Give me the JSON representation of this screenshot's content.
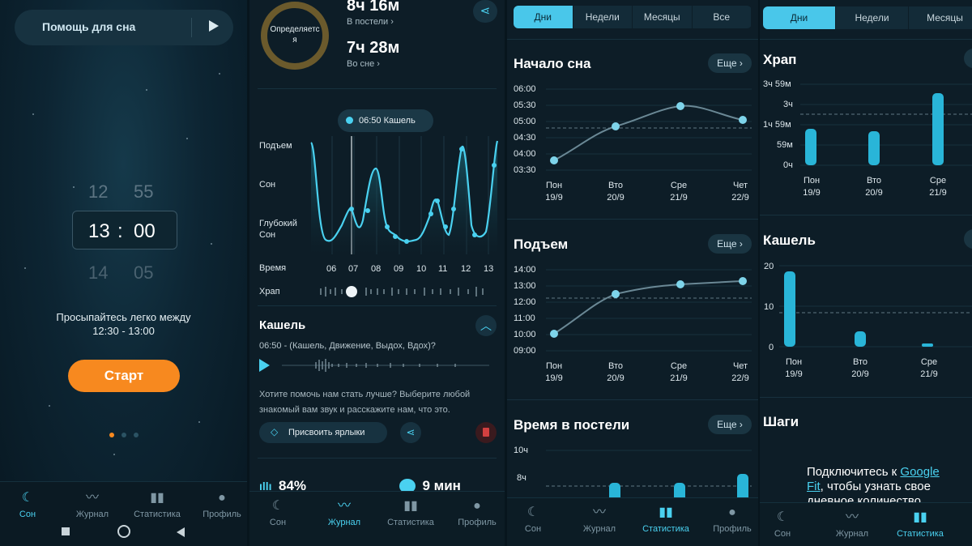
{
  "panel1": {
    "sleep_help": "Помощь для сна",
    "wheel": {
      "hours": [
        "12",
        "13",
        "14"
      ],
      "minutes": [
        "55",
        "00",
        "05"
      ],
      "sep": ":"
    },
    "wake_line1": "Просыпайтесь легко между",
    "wake_line2": "12:30 - 13:00",
    "start_label": "Старт",
    "nav": [
      "Сон",
      "Журнал",
      "Статистика",
      "Профиль"
    ]
  },
  "panel2": {
    "in_bed_value": "8ч 16м",
    "in_bed_label": "В постели ›",
    "asleep_value": "7ч 28м",
    "asleep_label": "Во сне ›",
    "ring_label": "Определяется",
    "marker_label": "06:50 Кашель",
    "y_labels": [
      "Подъем",
      "Сон",
      "Глубокий",
      "Сон"
    ],
    "time_label": "Время",
    "times": [
      "06",
      "07",
      "08",
      "09",
      "10",
      "11",
      "12",
      "13"
    ],
    "snore_label": "Храп",
    "cough_title": "Кашель",
    "cough_detail": "06:50 - (Кашель, Движение, Выдох, Вдох)?",
    "help_text_1": "Хотите помочь нам стать лучше? Выберите любой",
    "help_text_2": "знакомый вам звук и расскажите нам, что это.",
    "tag_button": "Присвоить ярлыки",
    "stat_percent": "84%",
    "stat_time": "9 мин",
    "nav": [
      "Сон",
      "Журнал",
      "Статистика",
      "Профиль"
    ]
  },
  "panel3": {
    "tabs": [
      "Дни",
      "Недели",
      "Месяцы",
      "Все"
    ],
    "more": "Еще",
    "charts": [
      {
        "title": "Начало сна",
        "ylabels": [
          "06:00",
          "05:30",
          "05:00",
          "04:30",
          "04:00",
          "03:30"
        ]
      },
      {
        "title": "Подъем",
        "ylabels": [
          "14:00",
          "13:00",
          "12:00",
          "11:00",
          "10:00",
          "09:00"
        ]
      },
      {
        "title": "Время в постели",
        "ylabels": [
          "10ч",
          "8ч"
        ]
      }
    ],
    "days": [
      "Пон",
      "Вто",
      "Сре",
      "Чет"
    ],
    "dates": [
      "19/9",
      "20/9",
      "21/9",
      "22/9"
    ],
    "nav": [
      "Сон",
      "Журнал",
      "Статистика",
      "Профиль"
    ]
  },
  "panel4": {
    "tabs": [
      "Дни",
      "Недели",
      "Месяцы"
    ],
    "snore_title": "Храп",
    "snore_y": [
      "3ч 59м",
      "3ч",
      "1ч 59м",
      "59м",
      "0ч"
    ],
    "cough_title": "Кашель",
    "cough_y": [
      "20",
      "10",
      "0"
    ],
    "steps_title": "Шаги",
    "days": [
      "Пон",
      "Вто",
      "Сре"
    ],
    "dates": [
      "19/9",
      "20/9",
      "21/9"
    ],
    "connect_1": "Подключитесь к ",
    "connect_link1": "Google",
    "connect_link2": "Fit",
    "connect_2": ", чтобы узнать свое",
    "connect_3": "дневное количество",
    "nav": [
      "Сон",
      "Журнал",
      "Статистика"
    ]
  },
  "chart_data": [
    {
      "type": "line",
      "title": "Начало сна",
      "categories": [
        "Пон 19/9",
        "Вто 20/9",
        "Сре 21/9",
        "Чет 22/9"
      ],
      "values": [
        "03:45",
        "04:52",
        "05:20",
        "05:02"
      ],
      "ylim": [
        "03:30",
        "06:00"
      ],
      "average": "04:47"
    },
    {
      "type": "line",
      "title": "Подъем",
      "categories": [
        "Пон 19/9",
        "Вто 20/9",
        "Сре 21/9",
        "Чет 22/9"
      ],
      "values": [
        "10:00",
        "12:30",
        "13:10",
        "13:20"
      ],
      "ylim": [
        "09:00",
        "14:00"
      ],
      "average": "12:15"
    },
    {
      "type": "bar",
      "title": "Время в постели",
      "categories": [
        "Пон 19/9",
        "Вто 20/9",
        "Сре 21/9",
        "Чет 22/9"
      ],
      "values": [
        0,
        7.4,
        7.4,
        8.3
      ],
      "unit": "ч"
    },
    {
      "type": "bar",
      "title": "Храп",
      "categories": [
        "Пон 19/9",
        "Вто 20/9",
        "Сре 21/9"
      ],
      "values": [
        2.1,
        1.9,
        4.4
      ],
      "unit": "ч",
      "yticks": [
        "0ч",
        "59м",
        "1ч 59м",
        "3ч",
        "3ч 59м"
      ]
    },
    {
      "type": "bar",
      "title": "Кашель",
      "categories": [
        "Пон 19/9",
        "Вто 20/9",
        "Сре 21/9"
      ],
      "values": [
        18,
        3,
        0.5
      ],
      "ylim": [
        0,
        20
      ]
    }
  ],
  "colors": {
    "accent": "#49c7ea",
    "start": "#f7891f",
    "delete": "#d24040"
  }
}
